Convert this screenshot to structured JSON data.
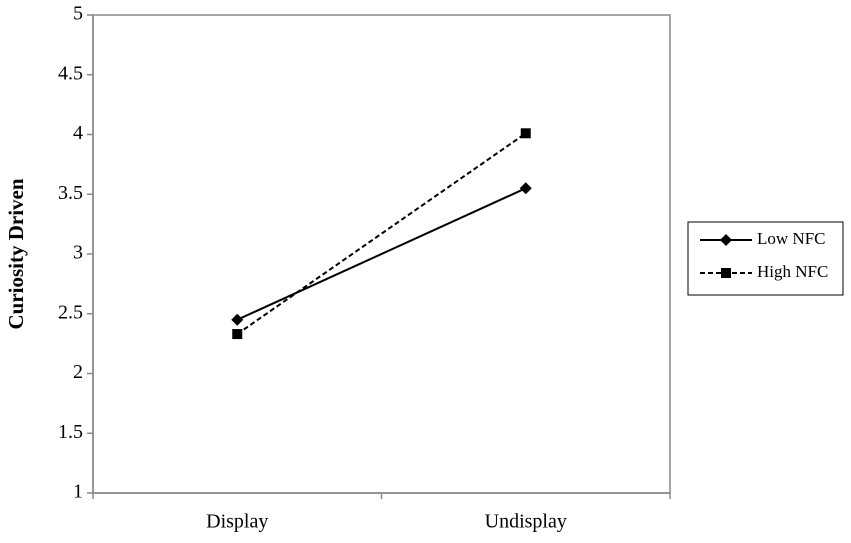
{
  "chart_data": {
    "type": "line",
    "y_label": "Curiosity Driven",
    "categories": [
      "Display",
      "Undisplay"
    ],
    "series": [
      {
        "name": "Low NFC",
        "color": "#000000",
        "line_style": "solid",
        "marker": "diamond",
        "values": [
          2.45,
          3.55
        ]
      },
      {
        "name": "High NFC",
        "color": "#000000",
        "line_style": "dashed",
        "marker": "square",
        "values": [
          2.33,
          4.01
        ]
      }
    ],
    "ylim": [
      1,
      5
    ],
    "yticks": [
      1,
      1.5,
      2,
      2.5,
      3,
      3.5,
      4,
      4.5,
      5
    ],
    "grid": false,
    "legend": "right"
  }
}
